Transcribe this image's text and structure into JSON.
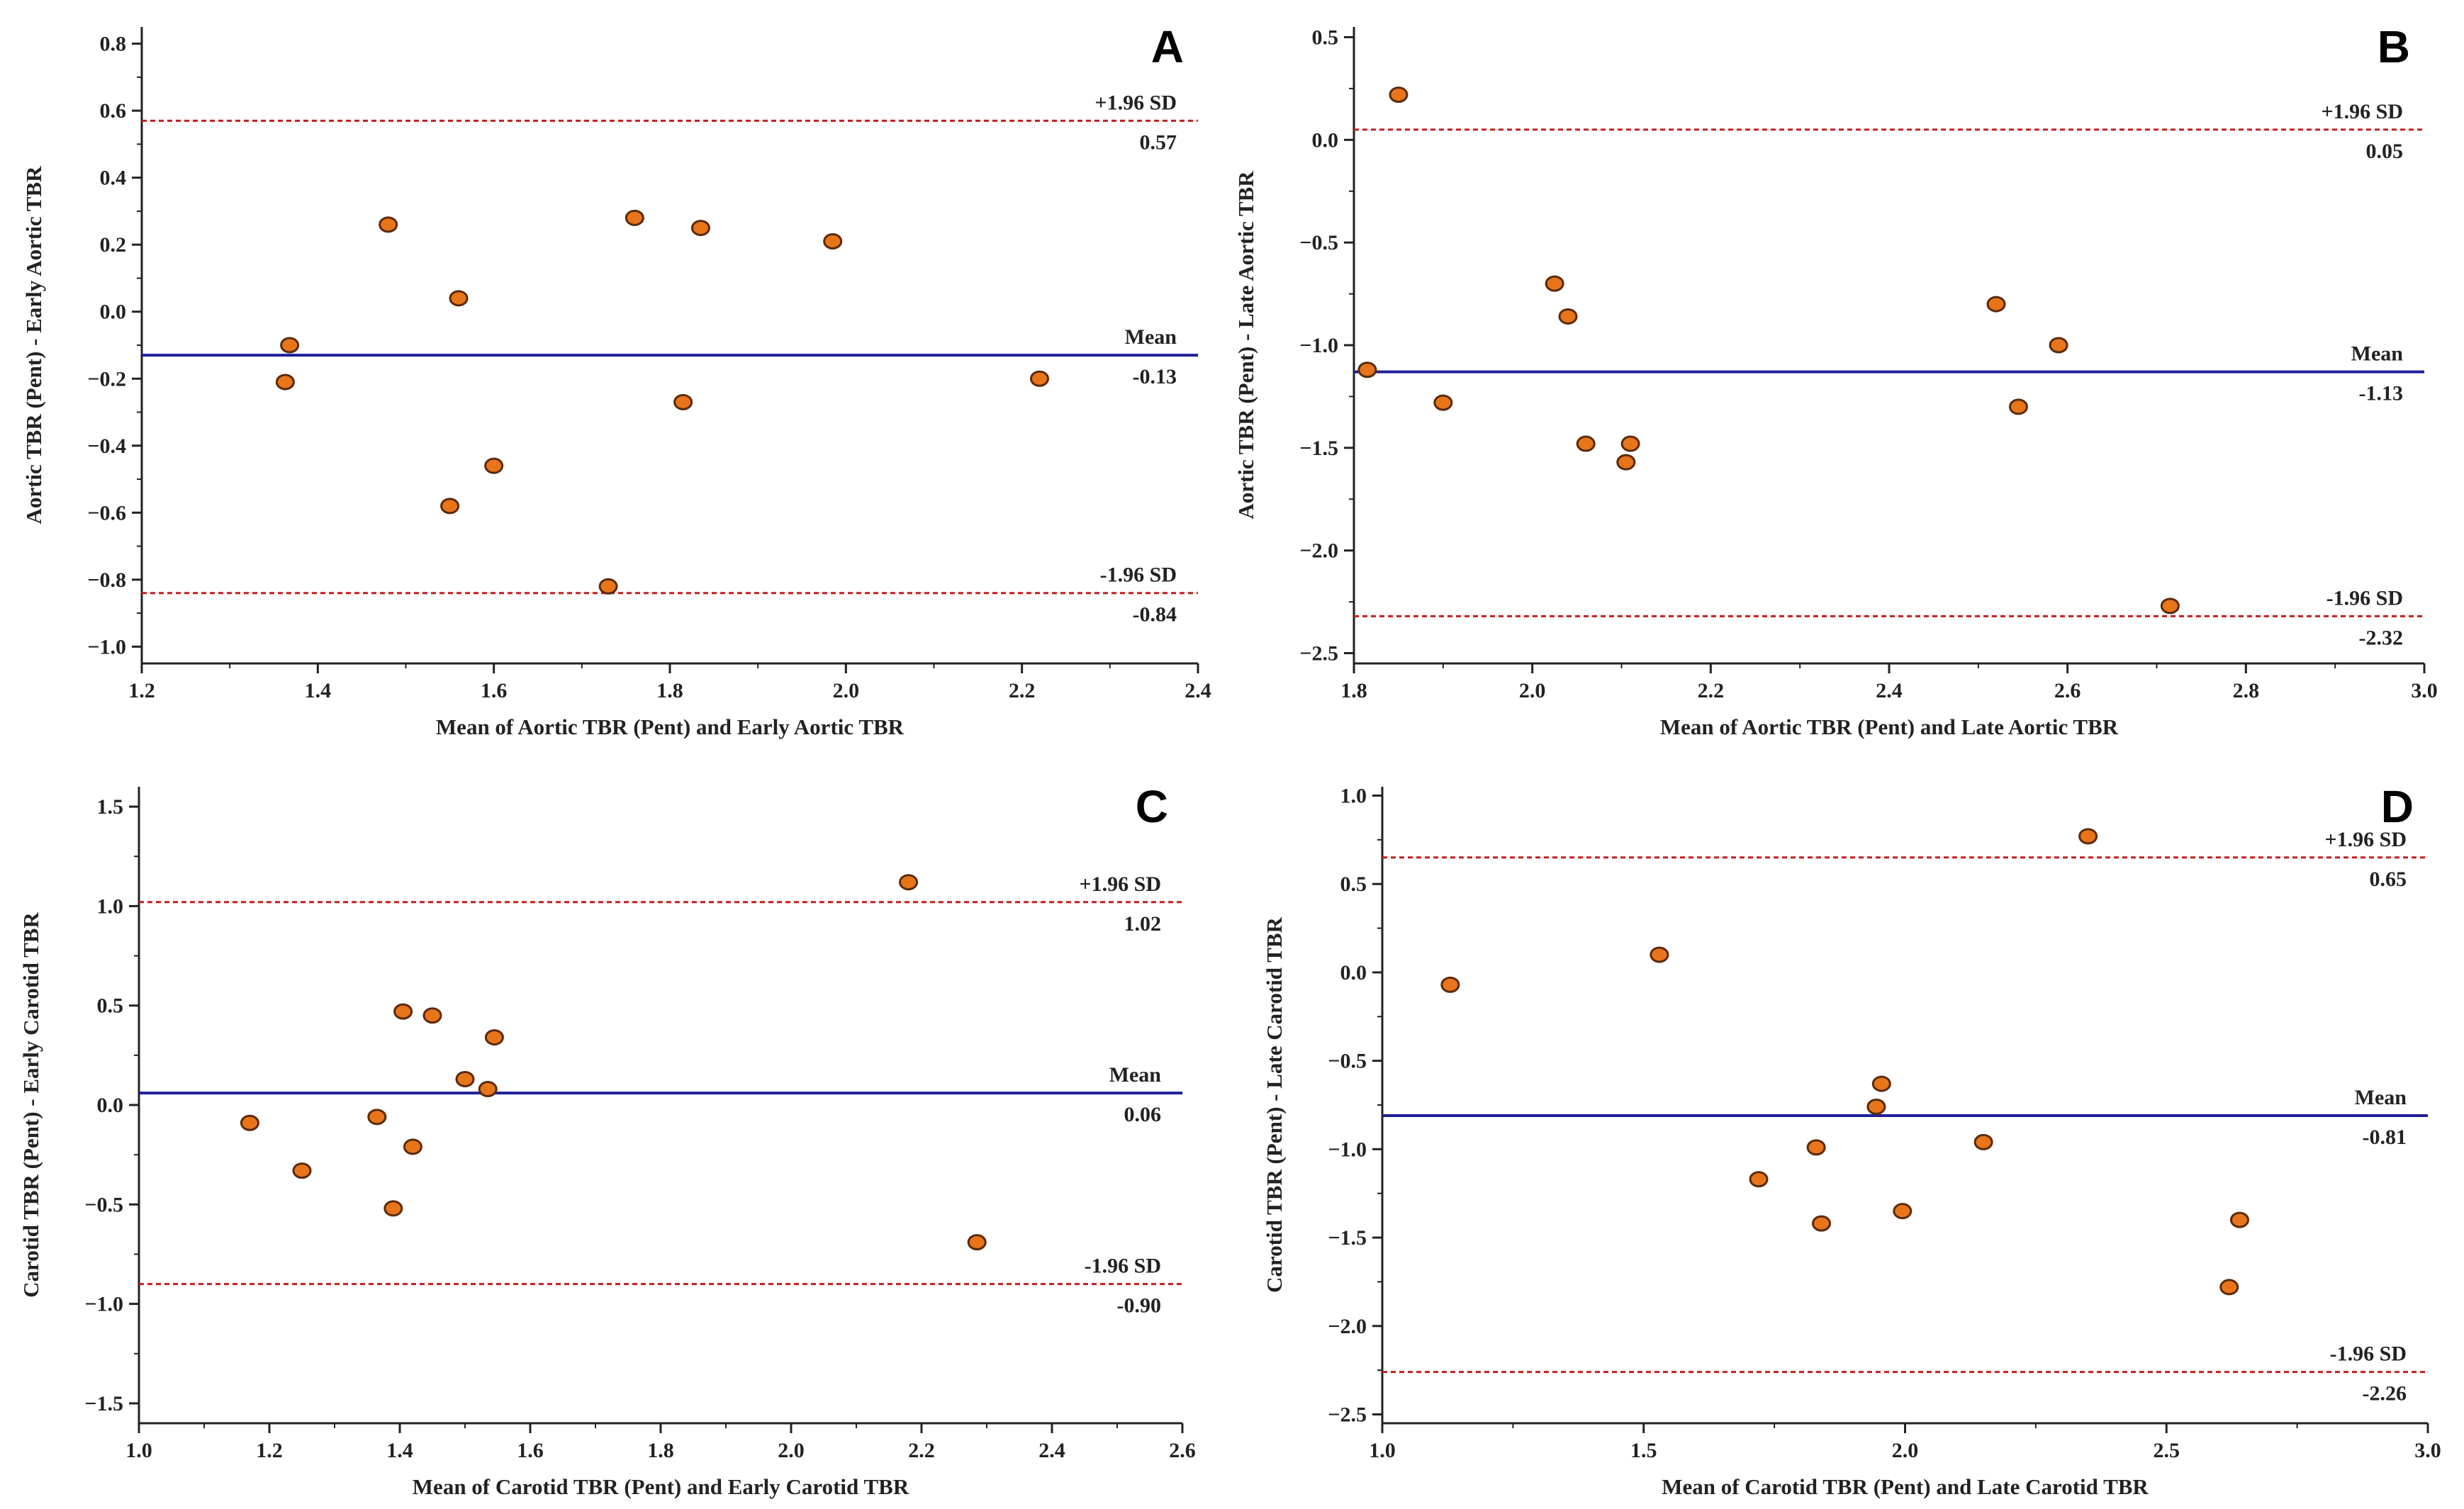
{
  "colors": {
    "mean_line": "#1f1f9a",
    "limit_line": "#c41e1e",
    "point_fill": "#e8751a",
    "point_stroke": "#5a2a0a",
    "axis": "#222222"
  },
  "chart_data": [
    {
      "type": "scatter",
      "panel_label": "A",
      "xlabel": "Mean of Aortic TBR (Pent) and Early Aortic TBR",
      "ylabel": "Aortic TBR (Pent) - Early Aortic TBR",
      "xlim": [
        1.2,
        2.4
      ],
      "ylim": [
        -1.05,
        0.85
      ],
      "xticks": [
        1.2,
        1.4,
        1.6,
        1.8,
        2.0,
        2.2,
        2.4
      ],
      "yticks": [
        -1.0,
        -0.8,
        -0.6,
        -0.4,
        -0.2,
        0.0,
        0.2,
        0.4,
        0.6,
        0.8
      ],
      "tick_format": "1",
      "lines": {
        "upper": {
          "value": 0.57,
          "label": "+1.96 SD",
          "value_label": "0.57"
        },
        "mean": {
          "value": -0.13,
          "label": "Mean",
          "value_label": "-0.13"
        },
        "lower": {
          "value": -0.84,
          "label": "-1.96 SD",
          "value_label": "-0.84"
        }
      },
      "points": [
        [
          1.363,
          -0.21
        ],
        [
          1.368,
          -0.1
        ],
        [
          1.48,
          0.26
        ],
        [
          1.55,
          -0.58
        ],
        [
          1.56,
          0.04
        ],
        [
          1.6,
          -0.46
        ],
        [
          1.73,
          -0.82
        ],
        [
          1.76,
          0.28
        ],
        [
          1.815,
          -0.27
        ],
        [
          1.835,
          0.25
        ],
        [
          1.985,
          0.21
        ],
        [
          2.22,
          -0.2
        ]
      ]
    },
    {
      "type": "scatter",
      "panel_label": "B",
      "xlabel": "Mean of Aortic TBR (Pent) and Late Aortic TBR",
      "ylabel": "Aortic TBR (Pent) - Late Aortic TBR",
      "xlim": [
        1.8,
        3.0
      ],
      "ylim": [
        -2.55,
        0.55
      ],
      "xticks": [
        1.8,
        2.0,
        2.2,
        2.4,
        2.6,
        2.8,
        3.0
      ],
      "yticks": [
        -2.5,
        -2.0,
        -1.5,
        -1.0,
        -0.5,
        0.0,
        0.5
      ],
      "tick_format": "1",
      "lines": {
        "upper": {
          "value": 0.05,
          "label": "+1.96 SD",
          "value_label": "0.05"
        },
        "mean": {
          "value": -1.13,
          "label": "Mean",
          "value_label": "-1.13"
        },
        "lower": {
          "value": -2.32,
          "label": "-1.96 SD",
          "value_label": "-2.32"
        }
      },
      "points": [
        [
          1.815,
          -1.12
        ],
        [
          1.85,
          0.22
        ],
        [
          1.9,
          -1.28
        ],
        [
          2.025,
          -0.7
        ],
        [
          2.04,
          -0.86
        ],
        [
          2.06,
          -1.48
        ],
        [
          2.105,
          -1.57
        ],
        [
          2.11,
          -1.48
        ],
        [
          2.52,
          -0.8
        ],
        [
          2.545,
          -1.3
        ],
        [
          2.59,
          -1.0
        ],
        [
          2.715,
          -2.27
        ]
      ]
    },
    {
      "type": "scatter",
      "panel_label": "C",
      "xlabel": "Mean of Carotid TBR (Pent) and Early Carotid TBR",
      "ylabel": "Carotid TBR (Pent) - Early Carotid TBR",
      "xlim": [
        1.0,
        2.6
      ],
      "ylim": [
        -1.6,
        1.6
      ],
      "xticks": [
        1.0,
        1.2,
        1.4,
        1.6,
        1.8,
        2.0,
        2.2,
        2.4,
        2.6
      ],
      "yticks": [
        -1.5,
        -1.0,
        -0.5,
        0.0,
        0.5,
        1.0,
        1.5
      ],
      "tick_format": "1",
      "lines": {
        "upper": {
          "value": 1.02,
          "label": "+1.96 SD",
          "value_label": "1.02"
        },
        "mean": {
          "value": 0.06,
          "label": "Mean",
          "value_label": "0.06"
        },
        "lower": {
          "value": -0.9,
          "label": "-1.96 SD",
          "value_label": "-0.90"
        }
      },
      "points": [
        [
          1.17,
          -0.09
        ],
        [
          1.25,
          -0.33
        ],
        [
          1.365,
          -0.06
        ],
        [
          1.39,
          -0.52
        ],
        [
          1.405,
          0.47
        ],
        [
          1.42,
          -0.21
        ],
        [
          1.45,
          0.45
        ],
        [
          1.5,
          0.13
        ],
        [
          1.535,
          0.08
        ],
        [
          1.545,
          0.34
        ],
        [
          2.18,
          1.12
        ],
        [
          2.285,
          -0.69
        ]
      ]
    },
    {
      "type": "scatter",
      "panel_label": "D",
      "xlabel": "Mean of Carotid TBR (Pent) and Late Carotid TBR",
      "ylabel": "Carotid TBR (Pent) - Late Carotid TBR",
      "xlim": [
        1.0,
        3.0
      ],
      "ylim": [
        -2.55,
        1.05
      ],
      "xticks": [
        1.0,
        1.5,
        2.0,
        2.5,
        3.0
      ],
      "yticks": [
        -2.5,
        -2.0,
        -1.5,
        -1.0,
        -0.5,
        0.0,
        0.5,
        1.0
      ],
      "tick_format": "1",
      "lines": {
        "upper": {
          "value": 0.65,
          "label": "+1.96 SD",
          "value_label": "0.65"
        },
        "mean": {
          "value": -0.81,
          "label": "Mean",
          "value_label": "-0.81"
        },
        "lower": {
          "value": -2.26,
          "label": "-1.96 SD",
          "value_label": "-2.26"
        }
      },
      "points": [
        [
          1.13,
          -0.07
        ],
        [
          1.53,
          0.1
        ],
        [
          1.72,
          -1.17
        ],
        [
          1.83,
          -0.99
        ],
        [
          1.84,
          -1.42
        ],
        [
          1.945,
          -0.76
        ],
        [
          1.955,
          -0.63
        ],
        [
          1.995,
          -1.35
        ],
        [
          2.15,
          -0.96
        ],
        [
          2.35,
          0.77
        ],
        [
          2.62,
          -1.78
        ],
        [
          2.64,
          -1.4
        ]
      ]
    }
  ]
}
